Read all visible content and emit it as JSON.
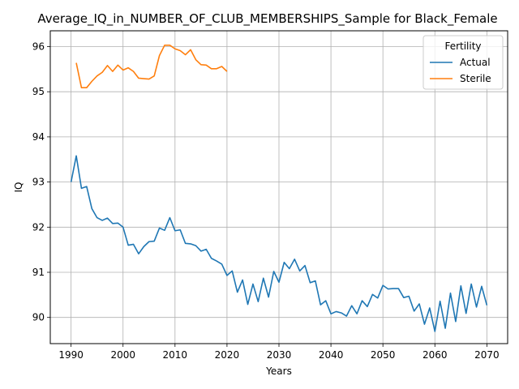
{
  "chart_data": {
    "type": "line",
    "title": "Average_IQ_in_NUMBER_OF_CLUB_MEMBERSHIPS_Sample for Black_Female",
    "xlabel": "Years",
    "ylabel": "IQ",
    "xlim": [
      1986,
      2074
    ],
    "ylim": [
      89.42,
      96.35
    ],
    "xticks": [
      1990,
      2000,
      2010,
      2020,
      2030,
      2040,
      2050,
      2060,
      2070
    ],
    "yticks": [
      90,
      91,
      92,
      93,
      94,
      95,
      96
    ],
    "grid": true,
    "legend": {
      "title": "Fertility",
      "placement": "top-right"
    },
    "series": [
      {
        "name": "Actual",
        "color": "#1f77b4",
        "x": [
          1990,
          1991,
          1992,
          1993,
          1994,
          1995,
          1996,
          1997,
          1998,
          1999,
          2000,
          2001,
          2002,
          2003,
          2004,
          2005,
          2006,
          2007,
          2008,
          2009,
          2010,
          2011,
          2012,
          2013,
          2014,
          2015,
          2016,
          2017,
          2018,
          2019,
          2020,
          2021,
          2022,
          2023,
          2024,
          2025,
          2026,
          2027,
          2028,
          2029,
          2030,
          2031,
          2032,
          2033,
          2034,
          2035,
          2036,
          2037,
          2038,
          2039,
          2040,
          2041,
          2042,
          2043,
          2044,
          2045,
          2046,
          2047,
          2048,
          2049,
          2050,
          2051,
          2052,
          2053,
          2054,
          2055,
          2056,
          2057,
          2058,
          2059,
          2060,
          2061,
          2062,
          2063,
          2064,
          2065,
          2066,
          2067,
          2068,
          2069,
          2070
        ],
        "values": [
          93.0,
          93.58,
          92.86,
          92.9,
          92.41,
          92.21,
          92.15,
          92.2,
          92.08,
          92.09,
          92.0,
          91.6,
          91.62,
          91.41,
          91.57,
          91.68,
          91.69,
          91.98,
          91.93,
          92.21,
          91.92,
          91.94,
          91.64,
          91.63,
          91.59,
          91.47,
          91.51,
          91.31,
          91.25,
          91.18,
          90.93,
          91.03,
          90.56,
          90.83,
          90.29,
          90.74,
          90.35,
          90.87,
          90.45,
          91.02,
          90.78,
          91.22,
          91.08,
          91.29,
          91.03,
          91.15,
          90.77,
          90.81,
          90.28,
          90.37,
          90.08,
          90.13,
          90.1,
          90.03,
          90.26,
          90.08,
          90.37,
          90.24,
          90.51,
          90.43,
          90.71,
          90.63,
          90.64,
          90.64,
          90.44,
          90.47,
          90.14,
          90.3,
          89.85,
          90.21,
          89.69,
          90.36,
          89.76,
          90.54,
          89.91,
          90.7,
          90.09,
          90.74,
          90.23,
          90.69,
          90.27
        ]
      },
      {
        "name": "Sterile",
        "color": "#ff7f0e",
        "x": [
          1991,
          1992,
          1993,
          1994,
          1995,
          1996,
          1997,
          1998,
          1999,
          2000,
          2001,
          2002,
          2003,
          2004,
          2005,
          2006,
          2007,
          2008,
          2009,
          2010,
          2011,
          2012,
          2013,
          2014,
          2015,
          2016,
          2017,
          2018,
          2019,
          2020
        ],
        "values": [
          95.64,
          95.09,
          95.09,
          95.23,
          95.35,
          95.43,
          95.58,
          95.45,
          95.59,
          95.48,
          95.53,
          95.45,
          95.3,
          95.29,
          95.28,
          95.35,
          95.8,
          96.03,
          96.03,
          95.95,
          95.91,
          95.82,
          95.93,
          95.71,
          95.6,
          95.59,
          95.51,
          95.51,
          95.56,
          95.45
        ]
      }
    ]
  }
}
